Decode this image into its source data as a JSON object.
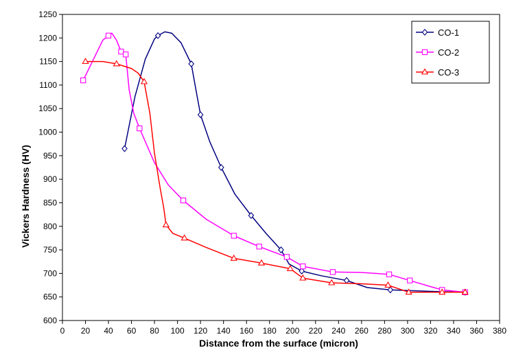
{
  "chart_data": {
    "type": "line",
    "xlabel": "Distance from the surface (micron)",
    "ylabel": "Vickers Hardness (HV)",
    "xlim": [
      0,
      380
    ],
    "ylim": [
      600,
      1250
    ],
    "xticks": [
      0,
      20,
      40,
      60,
      80,
      100,
      120,
      140,
      160,
      180,
      200,
      220,
      240,
      260,
      280,
      300,
      320,
      340,
      360,
      380
    ],
    "yticks": [
      600,
      650,
      700,
      750,
      800,
      850,
      900,
      950,
      1000,
      1050,
      1100,
      1150,
      1200,
      1250
    ],
    "grid": false,
    "legend_position": "top-right",
    "series": [
      {
        "name": "CO-1",
        "marker": "diamond",
        "color": "#000080",
        "x": [
          54,
          83,
          112,
          120,
          138,
          164,
          190,
          208,
          247,
          285,
          350
        ],
        "y": [
          965,
          1205,
          1145,
          1037,
          925,
          823,
          750,
          705,
          685,
          665,
          660
        ],
        "curve": [
          [
            54,
            965
          ],
          [
            63,
            1075
          ],
          [
            72,
            1155
          ],
          [
            80,
            1198
          ],
          [
            83,
            1205
          ],
          [
            89,
            1213
          ],
          [
            95,
            1210
          ],
          [
            103,
            1190
          ],
          [
            112,
            1145
          ],
          [
            116,
            1090
          ],
          [
            120,
            1037
          ],
          [
            128,
            980
          ],
          [
            138,
            925
          ],
          [
            150,
            868
          ],
          [
            164,
            823
          ],
          [
            177,
            785
          ],
          [
            190,
            750
          ],
          [
            197,
            720
          ],
          [
            208,
            705
          ],
          [
            225,
            695
          ],
          [
            247,
            685
          ],
          [
            265,
            670
          ],
          [
            285,
            665
          ],
          [
            320,
            662
          ],
          [
            350,
            660
          ]
        ]
      },
      {
        "name": "CO-2",
        "marker": "square",
        "color": "#FF00FF",
        "x": [
          18,
          40,
          51,
          55,
          67,
          105,
          149,
          171,
          195,
          209,
          235,
          284,
          302,
          330,
          350
        ],
        "y": [
          1110,
          1205,
          1171,
          1165,
          1008,
          855,
          780,
          757,
          735,
          715,
          703,
          698,
          685,
          665,
          660
        ],
        "curve": [
          [
            18,
            1110
          ],
          [
            27,
            1155
          ],
          [
            35,
            1195
          ],
          [
            40,
            1205
          ],
          [
            43,
            1210
          ],
          [
            47,
            1195
          ],
          [
            51,
            1171
          ],
          [
            55,
            1165
          ],
          [
            58,
            1090
          ],
          [
            62,
            1040
          ],
          [
            67,
            1008
          ],
          [
            80,
            935
          ],
          [
            92,
            888
          ],
          [
            105,
            855
          ],
          [
            125,
            815
          ],
          [
            149,
            780
          ],
          [
            171,
            757
          ],
          [
            195,
            735
          ],
          [
            209,
            715
          ],
          [
            235,
            703
          ],
          [
            260,
            702
          ],
          [
            284,
            698
          ],
          [
            302,
            685
          ],
          [
            320,
            672
          ],
          [
            330,
            665
          ],
          [
            350,
            660
          ]
        ]
      },
      {
        "name": "CO-3",
        "marker": "triangle",
        "color": "#FF0000",
        "x": [
          20,
          47,
          71,
          90,
          106,
          149,
          173,
          198,
          209,
          234,
          283,
          301,
          330,
          350
        ],
        "y": [
          1150,
          1145,
          1107,
          803,
          775,
          732,
          722,
          710,
          690,
          680,
          675,
          660,
          660,
          660
        ],
        "curve": [
          [
            20,
            1150
          ],
          [
            35,
            1150
          ],
          [
            47,
            1145
          ],
          [
            60,
            1135
          ],
          [
            66,
            1125
          ],
          [
            71,
            1107
          ],
          [
            76,
            1040
          ],
          [
            80,
            955
          ],
          [
            85,
            880
          ],
          [
            88,
            840
          ],
          [
            90,
            803
          ],
          [
            96,
            785
          ],
          [
            106,
            775
          ],
          [
            125,
            755
          ],
          [
            149,
            732
          ],
          [
            173,
            722
          ],
          [
            198,
            710
          ],
          [
            209,
            690
          ],
          [
            234,
            680
          ],
          [
            260,
            678
          ],
          [
            283,
            675
          ],
          [
            301,
            660
          ],
          [
            330,
            660
          ],
          [
            350,
            660
          ]
        ]
      }
    ]
  }
}
